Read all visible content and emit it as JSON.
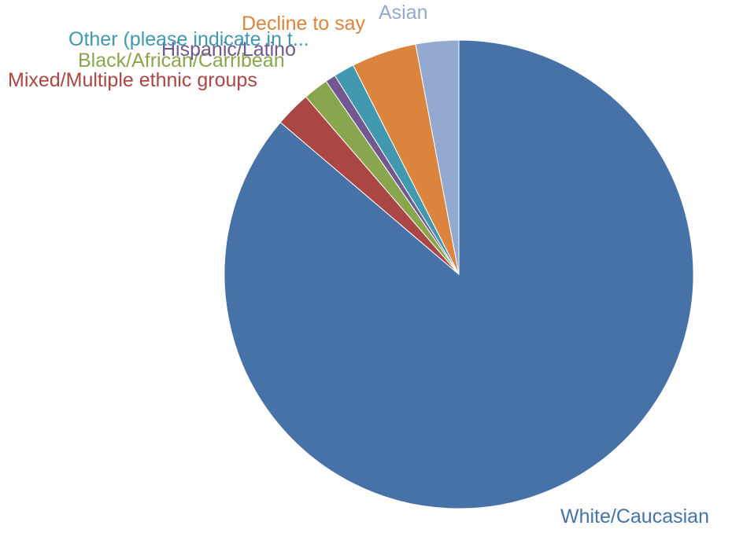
{
  "chart_data": {
    "type": "pie",
    "title": "",
    "start": "top",
    "direction": "clockwise",
    "legend": "none",
    "slices": [
      {
        "label": "White/Caucasian",
        "value": 84.6,
        "color": "#4672A8"
      },
      {
        "label": "Mixed/Multiple ethnic groups",
        "value": 2.4,
        "color": "#AA4643"
      },
      {
        "label": "Black/African/Carribean",
        "value": 1.7,
        "color": "#89A54E"
      },
      {
        "label": "Hispanic/Latino",
        "value": 0.7,
        "color": "#71588F"
      },
      {
        "label": "Other (please indicate in t...",
        "value": 1.4,
        "color": "#4198AF"
      },
      {
        "label": "Decline to say",
        "value": 4.4,
        "color": "#DB843D"
      },
      {
        "label": "Asian",
        "value": 2.9,
        "color": "#93A9CF"
      }
    ]
  }
}
